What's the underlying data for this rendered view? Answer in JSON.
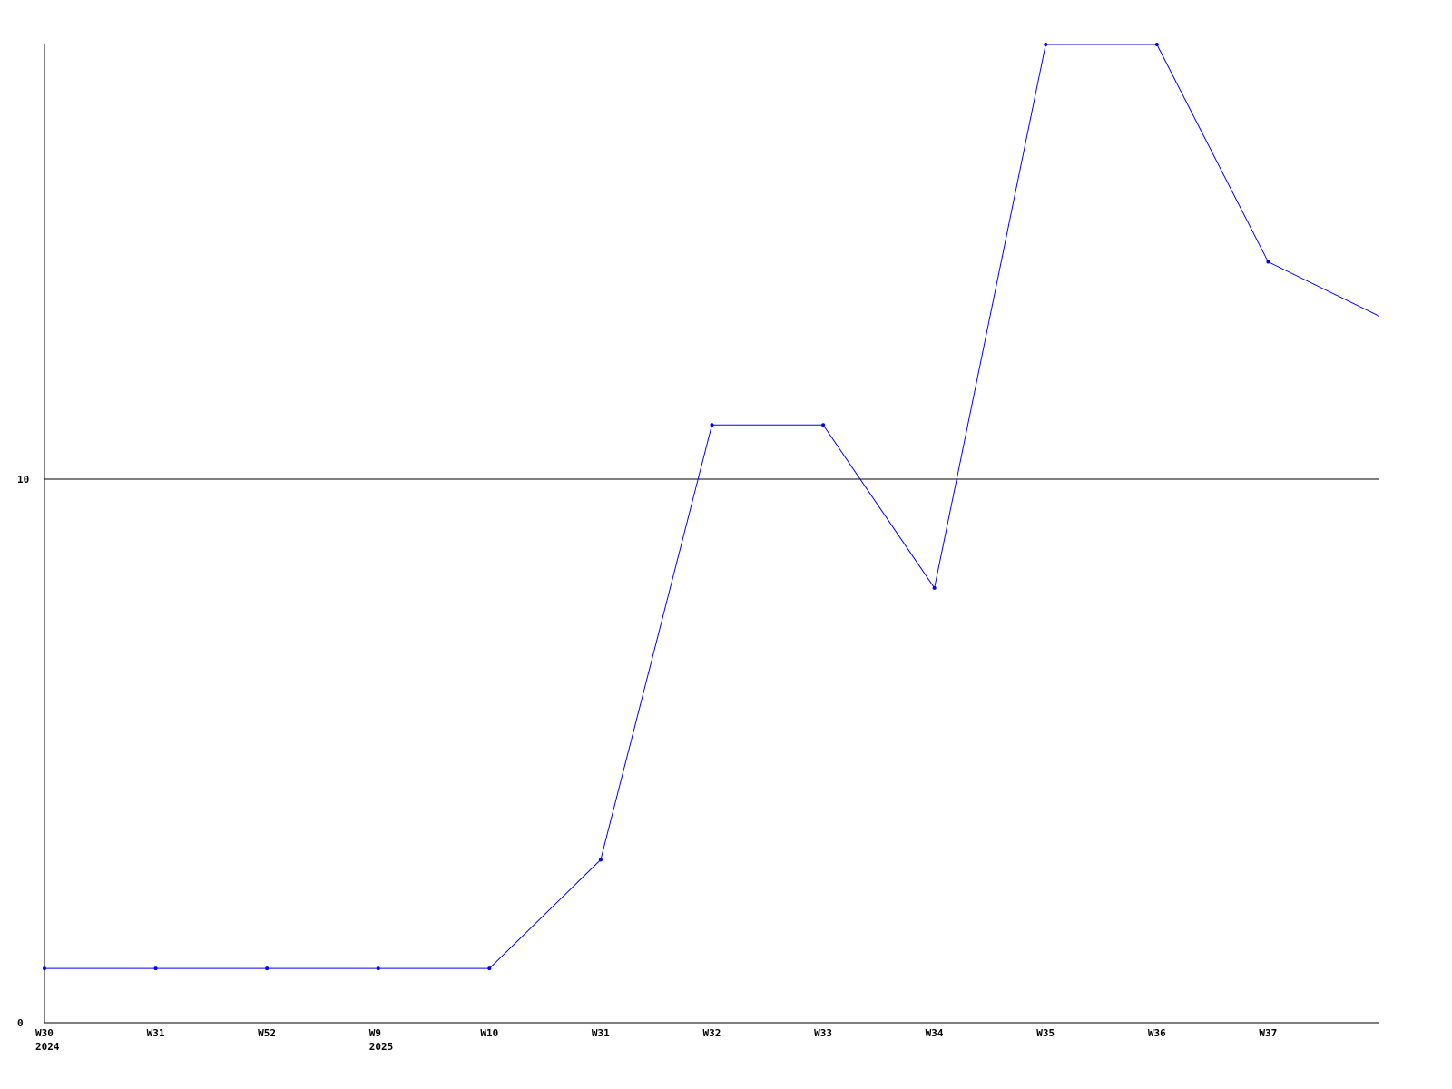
{
  "chart_data": {
    "type": "line",
    "title": "",
    "xlabel": "",
    "ylabel": "",
    "x_labels": [
      "W30",
      "W31",
      "W52",
      "W9",
      "W10",
      "W31",
      "W32",
      "W33",
      "W34",
      "W35",
      "W36",
      "W37",
      ""
    ],
    "x_sublabels": [
      "2024",
      "",
      "",
      "2025",
      "",
      "",
      "",
      "",
      "",
      "",
      "",
      "",
      ""
    ],
    "series": [
      {
        "values": [
          1,
          1,
          1,
          1,
          1,
          3,
          11,
          11,
          8,
          18,
          18,
          14,
          13
        ],
        "color": "#0000ff"
      }
    ],
    "y_ticks": [
      0,
      10
    ],
    "ylim": [
      0,
      18
    ],
    "grid": "horizontal line at 10",
    "axis_color": "#000000"
  }
}
